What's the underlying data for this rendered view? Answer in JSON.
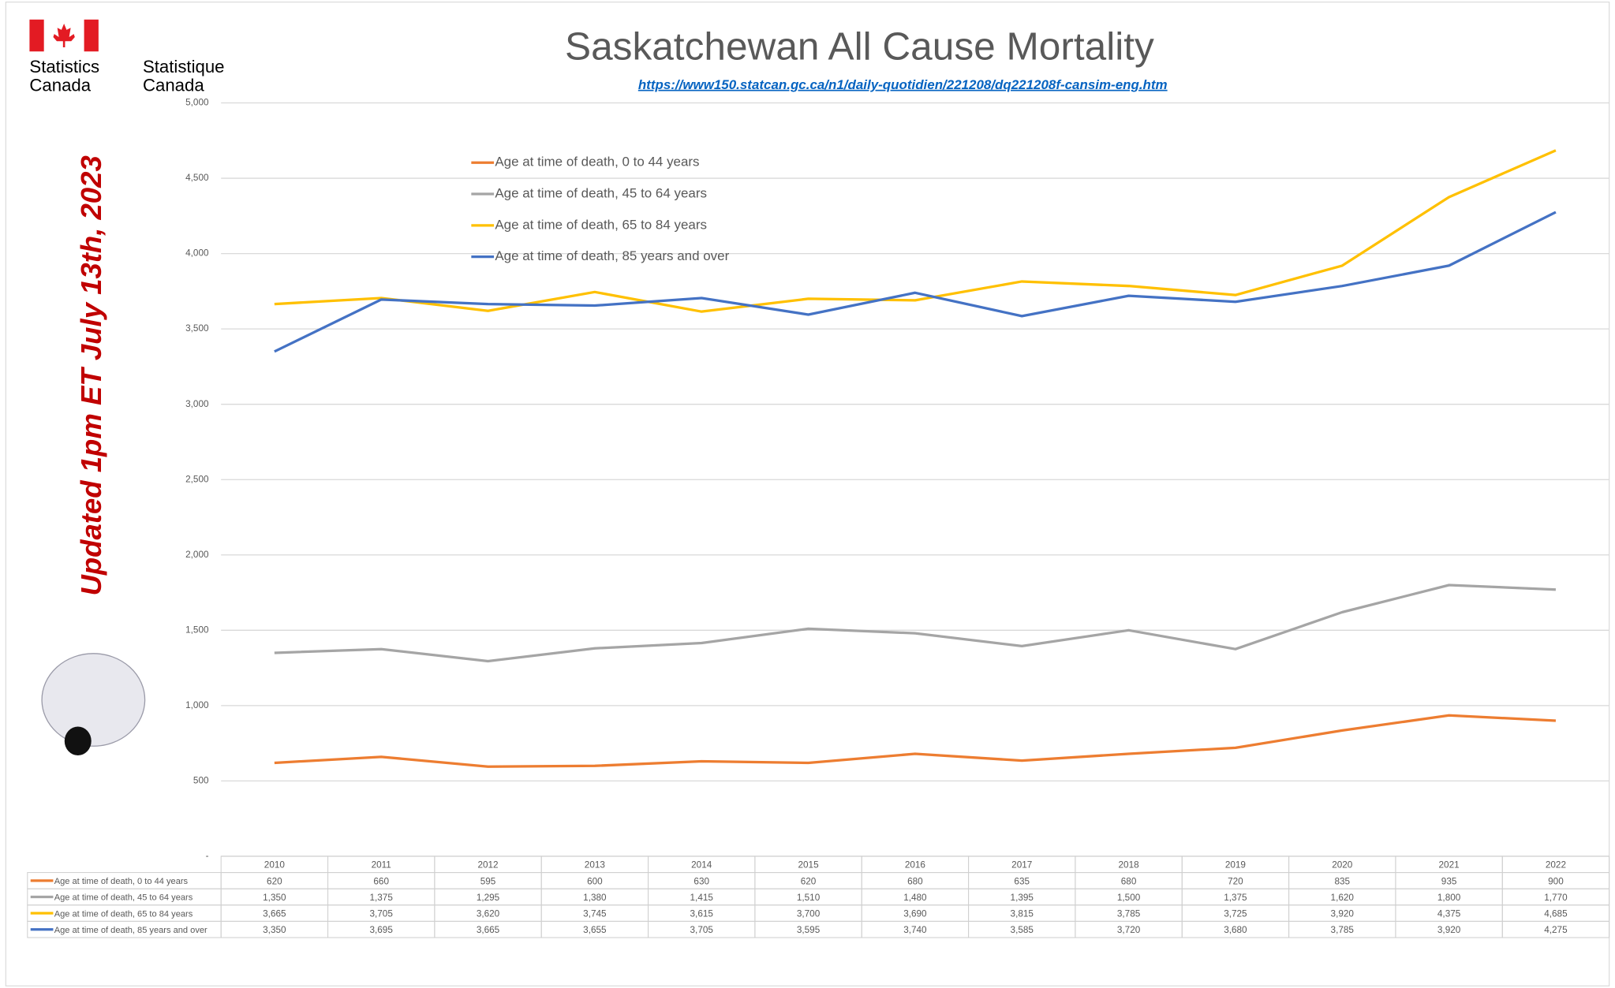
{
  "logo_en": [
    "Statistics",
    "Canada"
  ],
  "logo_fr": [
    "Statistique",
    "Canada"
  ],
  "chart_data": {
    "type": "line",
    "title": "Saskatchewan All Cause Mortality",
    "subtitle": "https://www150.statcan.gc.ca/n1/daily-quotidien/221208/dq221208f-cansim-eng.htm",
    "annotation": "Updated 1pm ET July 13th, 2023",
    "categories": [
      "2010",
      "2011",
      "2012",
      "2013",
      "2014",
      "2015",
      "2016",
      "2017",
      "2018",
      "2019",
      "2020",
      "2021",
      "2022"
    ],
    "series": [
      {
        "name": "Age at time of death, 0 to 44 years",
        "color": "#ED7D31",
        "values": [
          620,
          660,
          595,
          600,
          630,
          620,
          680,
          635,
          680,
          720,
          835,
          935,
          900
        ]
      },
      {
        "name": "Age at time of death, 45 to 64 years",
        "color": "#A5A5A5",
        "values": [
          1350,
          1375,
          1295,
          1380,
          1415,
          1510,
          1480,
          1395,
          1500,
          1375,
          1620,
          1800,
          1770
        ],
        "value_labels": [
          "1,350",
          "1,375",
          "1,295",
          "1,380",
          "1,415",
          "1,510",
          "1,480",
          "1,395",
          "1,500",
          "1,375",
          "1,620",
          "1,800",
          "1,770"
        ]
      },
      {
        "name": "Age at time of death, 65 to 84 years",
        "color": "#FFC000",
        "values": [
          3665,
          3705,
          3620,
          3745,
          3615,
          3700,
          3690,
          3815,
          3785,
          3725,
          3920,
          4375,
          4685
        ],
        "value_labels": [
          "3,665",
          "3,705",
          "3,620",
          "3,745",
          "3,615",
          "3,700",
          "3,690",
          "3,815",
          "3,785",
          "3,725",
          "3,920",
          "4,375",
          "4,685"
        ]
      },
      {
        "name": "Age at time of death, 85 years and over",
        "color": "#4472C4",
        "values": [
          3350,
          3695,
          3665,
          3655,
          3705,
          3595,
          3740,
          3585,
          3720,
          3680,
          3785,
          3920,
          4275
        ],
        "value_labels": [
          "3,350",
          "3,695",
          "3,665",
          "3,655",
          "3,705",
          "3,595",
          "3,740",
          "3,585",
          "3,720",
          "3,680",
          "3,785",
          "3,920",
          "4,275"
        ]
      }
    ],
    "ylim": [
      0,
      5000
    ],
    "yticks": [
      {
        "value": 0,
        "label": "-"
      },
      500,
      {
        "value": 1000,
        "label": "1,000"
      },
      {
        "value": 1500,
        "label": "1,500"
      },
      {
        "value": 2000,
        "label": "2,000"
      },
      {
        "value": 2500,
        "label": "2,500"
      },
      {
        "value": 3000,
        "label": "3,000"
      },
      {
        "value": 3500,
        "label": "3,500"
      },
      {
        "value": 4000,
        "label": "4,000"
      },
      {
        "value": 4500,
        "label": "4,500"
      },
      {
        "value": 5000,
        "label": "5,000"
      }
    ],
    "grid": true,
    "legend": "top-left"
  }
}
